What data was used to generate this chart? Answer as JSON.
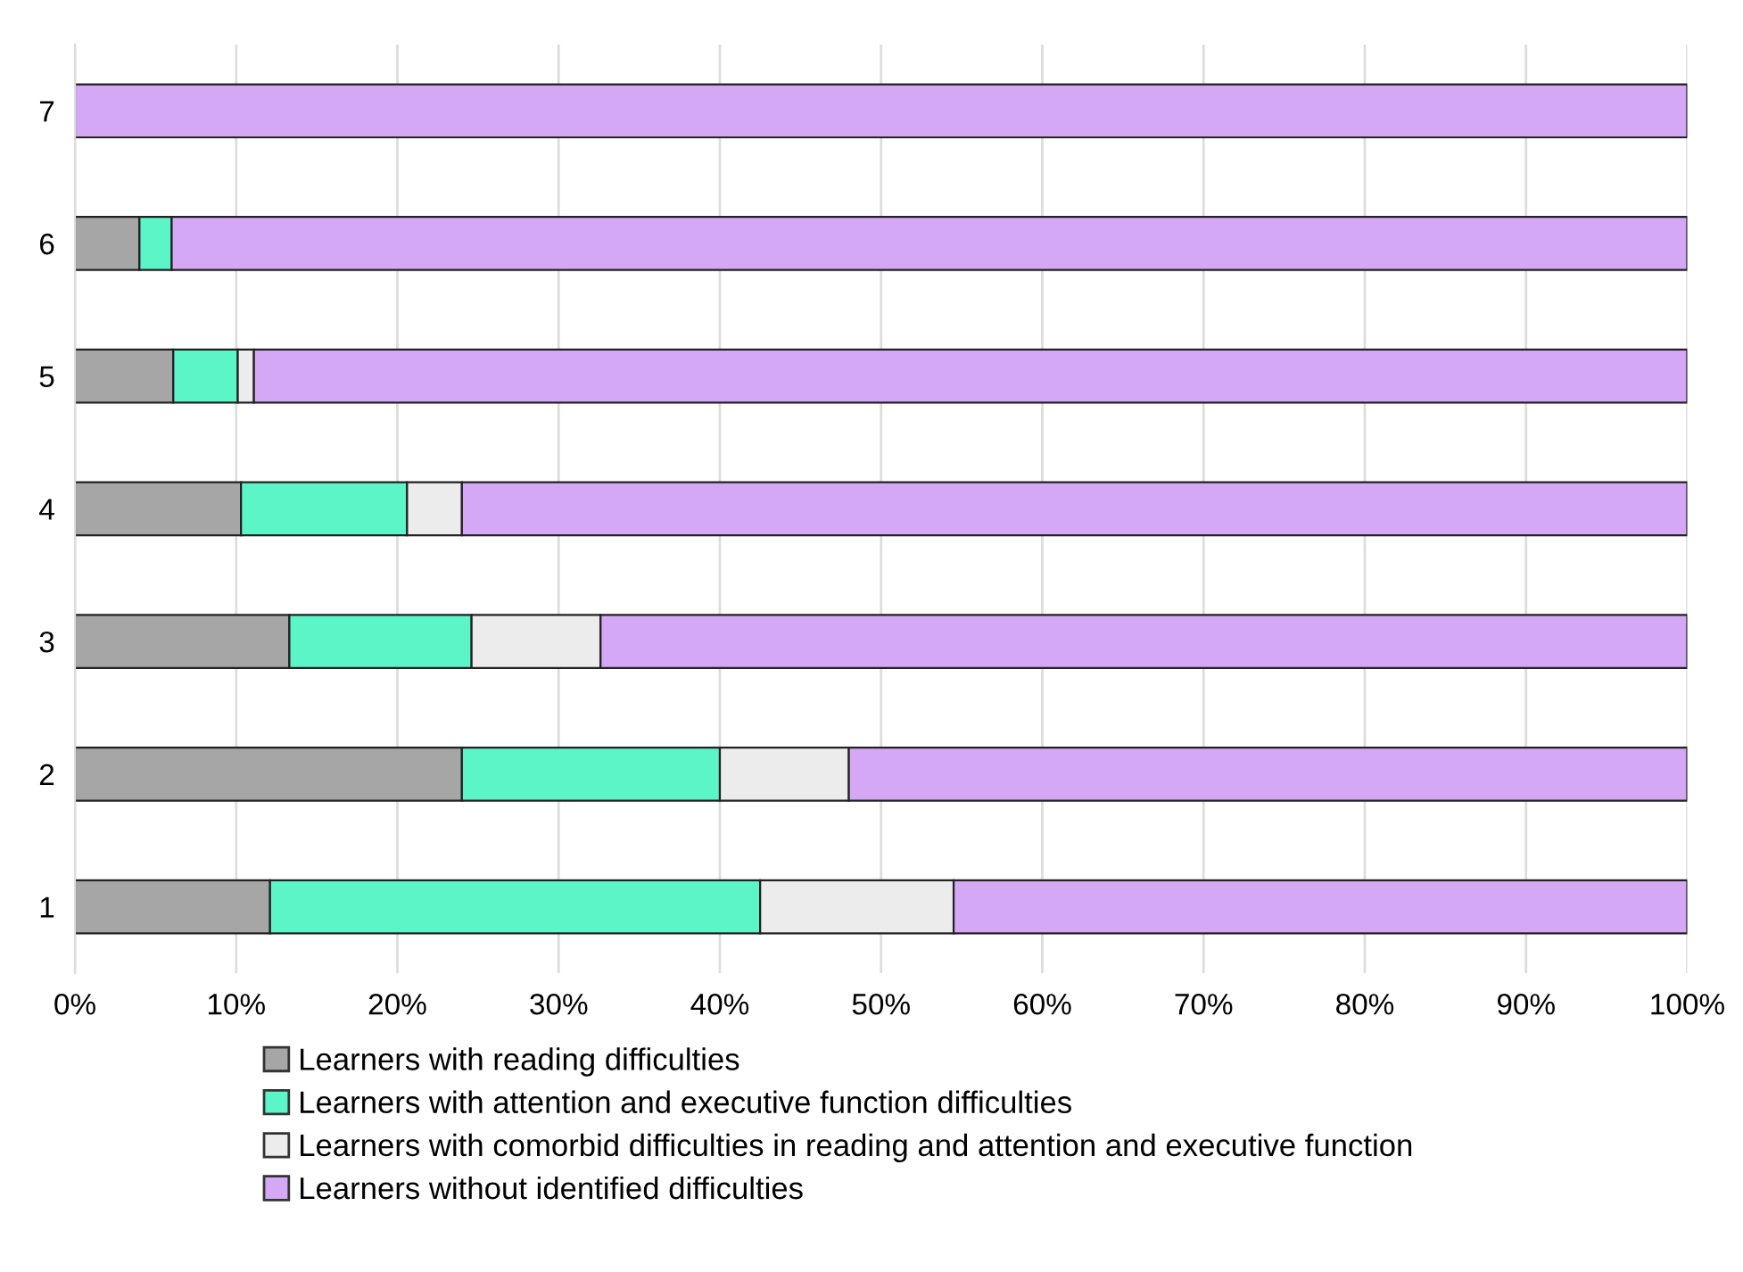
{
  "chart_data": {
    "type": "bar",
    "orientation": "horizontal",
    "stacked": true,
    "categories": [
      "7",
      "6",
      "5",
      "4",
      "3",
      "2",
      "1"
    ],
    "series": [
      {
        "name": "Learners with reading difficulties",
        "color": "#a6a6a6",
        "values": [
          0,
          4.0,
          6.1,
          10.3,
          13.3,
          24.0,
          12.1
        ]
      },
      {
        "name": "Learners with attention and executive function difficulties",
        "color": "#5cf5c8",
        "values": [
          0,
          2.0,
          4.0,
          10.3,
          11.3,
          16.0,
          30.4
        ]
      },
      {
        "name": "Learners with comorbid difficulties in reading and attention and executive function",
        "color": "#ececec",
        "values": [
          0,
          0,
          1.0,
          3.4,
          8.0,
          8.0,
          12.0
        ]
      },
      {
        "name": "Learners without identified difficulties",
        "color": "#d4a8f5",
        "values": [
          100,
          94.0,
          88.9,
          76.0,
          67.4,
          52.0,
          45.5
        ]
      }
    ],
    "xlim": [
      0,
      100
    ],
    "xticks": [
      {
        "value": 0,
        "label": "0%"
      },
      {
        "value": 10,
        "label": "10%"
      },
      {
        "value": 20,
        "label": "20%"
      },
      {
        "value": 30,
        "label": "30%"
      },
      {
        "value": 40,
        "label": "40%"
      },
      {
        "value": 50,
        "label": "50%"
      },
      {
        "value": 60,
        "label": "60%"
      },
      {
        "value": 70,
        "label": "70%"
      },
      {
        "value": 80,
        "label": "80%"
      },
      {
        "value": 90,
        "label": "90%"
      },
      {
        "value": 100,
        "label": "100%"
      }
    ],
    "grid": "x",
    "legend": "bottom"
  }
}
